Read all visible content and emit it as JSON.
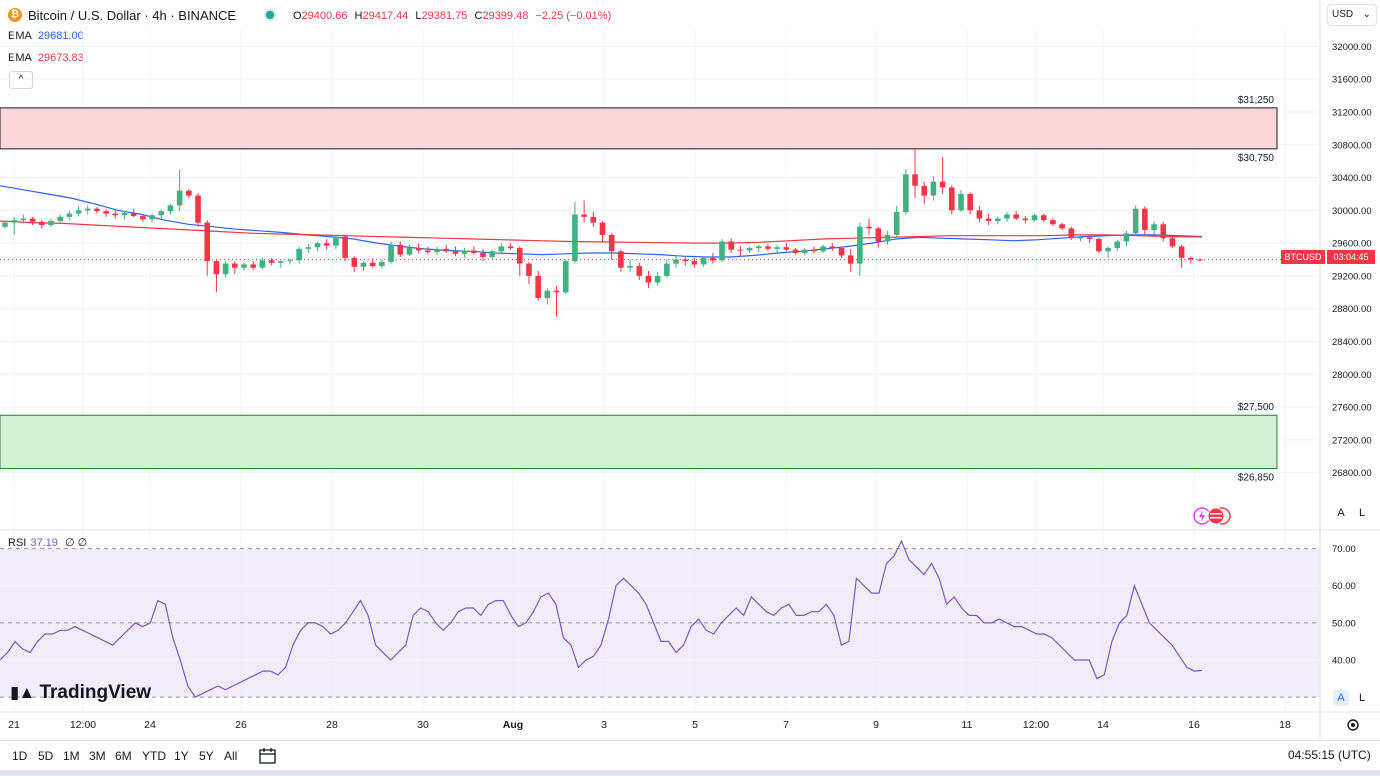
{
  "header": {
    "symbol_title": "Bitcoin / U.S. Dollar · 4h · BINANCE",
    "icon_letter": "₿",
    "ohlc": [
      {
        "k": "O",
        "v": "29400.66"
      },
      {
        "k": "H",
        "v": "29417.44"
      },
      {
        "k": "L",
        "v": "29381.75"
      },
      {
        "k": "C",
        "v": "29399.48"
      }
    ],
    "change": "−2.25 (−0.01%)",
    "ema1_label": "EMA",
    "ema1_value": "29681.00",
    "ema2_label": "EMA",
    "ema2_value": "29673.83",
    "collapse": "^"
  },
  "currency": "USD",
  "currency_arrow": "⌄",
  "price_tag": {
    "symbol": "BTCUSD",
    "countdown": "03:04:45",
    "price": "29399.48"
  },
  "rsi": {
    "label": "RSI",
    "value": "37.19",
    "extra": "∅ ∅"
  },
  "logo": "TradingView",
  "scale_buttons": {
    "auto": "A",
    "log": "L"
  },
  "timeframes": [
    "1D",
    "5D",
    "1M",
    "3M",
    "6M",
    "YTD",
    "1Y",
    "5Y",
    "All"
  ],
  "clock": "04:55:15 (UTC)",
  "colors": {
    "up": "#26a69a",
    "up_candle": "#3fb27f",
    "down": "#f23645",
    "ema_blue": "#2962ff",
    "ema_red": "#f23645",
    "rsi": "#7e57c2",
    "resistance_fill": "#fbd6d8",
    "support_fill": "#d1f0d4"
  },
  "chart_data": {
    "type": "candlestick",
    "title": "Bitcoin / U.S. Dollar · 4h · BINANCE",
    "price_axis": {
      "ticks": [
        32000,
        31600,
        31200,
        30800,
        30400,
        30000,
        29600,
        29200,
        28800,
        28400,
        28000,
        27600,
        27200,
        26800
      ],
      "tick_labels": [
        "32000.00",
        "31600.00",
        "31200.00",
        "30800.00",
        "30400.00",
        "30000.00",
        "29600.00",
        "29200.00",
        "28800.00",
        "28400.00",
        "28000.00",
        "27600.00",
        "27200.00",
        "26800.00"
      ],
      "range": [
        26100,
        32200
      ]
    },
    "time_axis": {
      "labels": [
        "21",
        "12:00",
        "24",
        "26",
        "28",
        "30",
        "Aug",
        "3",
        "5",
        "7",
        "9",
        "11",
        "12:00",
        "14",
        "16",
        "18"
      ],
      "bold": [
        "Aug"
      ]
    },
    "zones": [
      {
        "name": "resistance",
        "from": 30750,
        "to": 31250,
        "labels": [
          "$31,250",
          "$30,750"
        ]
      },
      {
        "name": "support",
        "from": 26850,
        "to": 27500,
        "labels": [
          "$27,500",
          "$26,850"
        ]
      }
    ],
    "candles_ohlc": [
      [
        29800,
        29870,
        29780,
        29850
      ],
      [
        29850,
        29920,
        29700,
        29880
      ],
      [
        29880,
        29950,
        29840,
        29900
      ],
      [
        29900,
        29920,
        29820,
        29860
      ],
      [
        29860,
        29880,
        29780,
        29820
      ],
      [
        29820,
        29900,
        29800,
        29870
      ],
      [
        29870,
        29950,
        29840,
        29920
      ],
      [
        29920,
        29990,
        29880,
        29960
      ],
      [
        29960,
        30050,
        29930,
        30000
      ],
      [
        30000,
        30060,
        29950,
        30020
      ],
      [
        30020,
        30040,
        29960,
        29990
      ],
      [
        29990,
        30010,
        29920,
        29960
      ],
      [
        29960,
        30000,
        29900,
        29940
      ],
      [
        29940,
        29990,
        29890,
        29970
      ],
      [
        29970,
        30020,
        29920,
        29930
      ],
      [
        29930,
        29950,
        29860,
        29890
      ],
      [
        29890,
        29960,
        29850,
        29940
      ],
      [
        29940,
        30010,
        29900,
        29990
      ],
      [
        29990,
        30080,
        29950,
        30060
      ],
      [
        30060,
        30500,
        29990,
        30240
      ],
      [
        30240,
        30260,
        30150,
        30180
      ],
      [
        30180,
        30210,
        29800,
        29850
      ],
      [
        29850,
        29880,
        29200,
        29380
      ],
      [
        29380,
        29400,
        29000,
        29220
      ],
      [
        29220,
        29380,
        29180,
        29350
      ],
      [
        29350,
        29380,
        29220,
        29300
      ],
      [
        29300,
        29360,
        29260,
        29340
      ],
      [
        29340,
        29380,
        29270,
        29300
      ],
      [
        29300,
        29420,
        29280,
        29390
      ],
      [
        29390,
        29420,
        29330,
        29360
      ],
      [
        29360,
        29390,
        29300,
        29380
      ],
      [
        29380,
        29410,
        29340,
        29390
      ],
      [
        29390,
        29560,
        29350,
        29530
      ],
      [
        29530,
        29590,
        29480,
        29550
      ],
      [
        29550,
        29620,
        29500,
        29600
      ],
      [
        29600,
        29650,
        29520,
        29570
      ],
      [
        29570,
        29700,
        29530,
        29680
      ],
      [
        29680,
        29700,
        29380,
        29420
      ],
      [
        29420,
        29440,
        29250,
        29310
      ],
      [
        29310,
        29380,
        29260,
        29360
      ],
      [
        29360,
        29420,
        29300,
        29320
      ],
      [
        29320,
        29400,
        29290,
        29370
      ],
      [
        29370,
        29620,
        29350,
        29580
      ],
      [
        29580,
        29620,
        29430,
        29460
      ],
      [
        29460,
        29580,
        29440,
        29540
      ],
      [
        29540,
        29600,
        29480,
        29510
      ],
      [
        29510,
        29560,
        29460,
        29490
      ],
      [
        29490,
        29560,
        29450,
        29530
      ],
      [
        29530,
        29580,
        29480,
        29500
      ],
      [
        29500,
        29560,
        29440,
        29470
      ],
      [
        29470,
        29540,
        29420,
        29510
      ],
      [
        29510,
        29560,
        29460,
        29480
      ],
      [
        29480,
        29530,
        29380,
        29430
      ],
      [
        29430,
        29520,
        29400,
        29500
      ],
      [
        29500,
        29600,
        29460,
        29560
      ],
      [
        29560,
        29600,
        29520,
        29540
      ],
      [
        29540,
        29560,
        29200,
        29350
      ],
      [
        29350,
        29370,
        29100,
        29200
      ],
      [
        29200,
        29260,
        28900,
        28930
      ],
      [
        28930,
        29050,
        28850,
        29020
      ],
      [
        29020,
        29080,
        28700,
        29000
      ],
      [
        29000,
        29400,
        28980,
        29380
      ],
      [
        29380,
        30100,
        29350,
        29950
      ],
      [
        29950,
        30120,
        29850,
        29920
      ],
      [
        29920,
        29980,
        29800,
        29850
      ],
      [
        29850,
        29870,
        29620,
        29700
      ],
      [
        29700,
        29720,
        29400,
        29500
      ],
      [
        29500,
        29520,
        29250,
        29300
      ],
      [
        29300,
        29400,
        29250,
        29320
      ],
      [
        29320,
        29360,
        29150,
        29200
      ],
      [
        29200,
        29260,
        29050,
        29120
      ],
      [
        29120,
        29250,
        29080,
        29200
      ],
      [
        29200,
        29400,
        29180,
        29350
      ],
      [
        29350,
        29450,
        29300,
        29400
      ],
      [
        29400,
        29440,
        29320,
        29380
      ],
      [
        29380,
        29420,
        29300,
        29340
      ],
      [
        29340,
        29440,
        29310,
        29420
      ],
      [
        29420,
        29480,
        29350,
        29390
      ],
      [
        29390,
        29650,
        29370,
        29620
      ],
      [
        29620,
        29660,
        29480,
        29520
      ],
      [
        29520,
        29560,
        29440,
        29510
      ],
      [
        29510,
        29560,
        29480,
        29540
      ],
      [
        29540,
        29580,
        29490,
        29560
      ],
      [
        29560,
        29590,
        29500,
        29530
      ],
      [
        29530,
        29580,
        29480,
        29550
      ],
      [
        29550,
        29600,
        29500,
        29520
      ],
      [
        29520,
        29540,
        29460,
        29480
      ],
      [
        29480,
        29540,
        29450,
        29520
      ],
      [
        29520,
        29560,
        29470,
        29500
      ],
      [
        29500,
        29580,
        29480,
        29560
      ],
      [
        29560,
        29600,
        29500,
        29540
      ],
      [
        29540,
        29560,
        29420,
        29450
      ],
      [
        29450,
        29530,
        29250,
        29350
      ],
      [
        29350,
        29850,
        29200,
        29800
      ],
      [
        29800,
        29900,
        29700,
        29780
      ],
      [
        29780,
        29800,
        29550,
        29620
      ],
      [
        29620,
        29750,
        29580,
        29700
      ],
      [
        29700,
        30050,
        29680,
        29980
      ],
      [
        29980,
        30500,
        29950,
        30440
      ],
      [
        30440,
        30750,
        30150,
        30300
      ],
      [
        30300,
        30350,
        30080,
        30180
      ],
      [
        30180,
        30420,
        30120,
        30350
      ],
      [
        30350,
        30650,
        30200,
        30280
      ],
      [
        30280,
        30310,
        29950,
        30000
      ],
      [
        30000,
        30250,
        29980,
        30200
      ],
      [
        30200,
        30220,
        29950,
        30000
      ],
      [
        30000,
        30050,
        29850,
        29900
      ],
      [
        29900,
        29960,
        29820,
        29870
      ],
      [
        29870,
        29920,
        29830,
        29900
      ],
      [
        29900,
        29980,
        29860,
        29950
      ],
      [
        29950,
        29990,
        29880,
        29900
      ],
      [
        29900,
        29930,
        29840,
        29880
      ],
      [
        29880,
        29960,
        29860,
        29940
      ],
      [
        29940,
        29960,
        29860,
        29880
      ],
      [
        29880,
        29900,
        29810,
        29830
      ],
      [
        29830,
        29850,
        29760,
        29780
      ],
      [
        29780,
        29800,
        29640,
        29660
      ],
      [
        29660,
        29690,
        29620,
        29670
      ],
      [
        29670,
        29700,
        29600,
        29650
      ],
      [
        29650,
        29670,
        29480,
        29500
      ],
      [
        29500,
        29560,
        29420,
        29540
      ],
      [
        29540,
        29640,
        29500,
        29620
      ],
      [
        29620,
        29750,
        29560,
        29720
      ],
      [
        29720,
        30060,
        29690,
        30020
      ],
      [
        30020,
        30050,
        29700,
        29760
      ],
      [
        29760,
        29870,
        29700,
        29830
      ],
      [
        29830,
        29860,
        29620,
        29660
      ],
      [
        29660,
        29680,
        29540,
        29560
      ],
      [
        29560,
        29580,
        29300,
        29420
      ],
      [
        29420,
        29440,
        29350,
        29400
      ],
      [
        29400,
        29417,
        29381,
        29399
      ]
    ],
    "ema_fast": {
      "name": "EMA",
      "last": 29681.0,
      "values": [
        30300,
        30250,
        30200,
        30150,
        30080,
        30000,
        29950,
        29880,
        29830,
        29800,
        29770,
        29750,
        29730,
        29700,
        29680,
        29650,
        29600,
        29560,
        29530,
        29510,
        29500,
        29480,
        29470,
        29460,
        29470,
        29480,
        29480,
        29470,
        29460,
        29440,
        29430,
        29430,
        29450,
        29480,
        29500,
        29530,
        29560,
        29600,
        29650,
        29670,
        29660,
        29650,
        29640,
        29630,
        29640,
        29660,
        29680,
        29690,
        29700,
        29700,
        29690,
        29681
      ]
    },
    "ema_slow": {
      "name": "EMA",
      "last": 29673.83,
      "values": [
        29870,
        29850,
        29840,
        29820,
        29800,
        29780,
        29760,
        29740,
        29720,
        29710,
        29700,
        29690,
        29680,
        29670,
        29660,
        29650,
        29640,
        29630,
        29620,
        29615,
        29610,
        29605,
        29600,
        29600,
        29610,
        29630,
        29650,
        29660,
        29670,
        29680,
        29690,
        29690,
        29690,
        29690,
        29700,
        29700,
        29690,
        29680,
        29674
      ]
    },
    "rsi": {
      "name": "RSI",
      "period_value": 37.19,
      "levels": [
        70,
        50,
        30
      ],
      "ticks": [
        70,
        60,
        50,
        40
      ],
      "tick_labels": [
        "70.00",
        "60.00",
        "50.00",
        "40.00"
      ],
      "range": [
        26,
        75
      ],
      "values": [
        40,
        42,
        45,
        43,
        42,
        45,
        47,
        47,
        48,
        48,
        49,
        48,
        47,
        46,
        45,
        44,
        46,
        48,
        50,
        49,
        50,
        56,
        55,
        46,
        40,
        33,
        30,
        31,
        32,
        33,
        32,
        33,
        34,
        35,
        36,
        37,
        37,
        36,
        38,
        44,
        48,
        50,
        50,
        49,
        47,
        48,
        50,
        53,
        56,
        52,
        44,
        42,
        40,
        42,
        44,
        52,
        54,
        53,
        50,
        48,
        50,
        53,
        54,
        54,
        52,
        55,
        56,
        56,
        52,
        49,
        50,
        53,
        57,
        58,
        55,
        46,
        44,
        38,
        40,
        41,
        44,
        51,
        60,
        62,
        60,
        58,
        55,
        50,
        45,
        45,
        42,
        44,
        49,
        51,
        48,
        47,
        50,
        52,
        54,
        52,
        57,
        55,
        53,
        52,
        54,
        55,
        52,
        52,
        53,
        53,
        55,
        52,
        44,
        45,
        62,
        60,
        58,
        58,
        66,
        68,
        72,
        67,
        65,
        63,
        66,
        62,
        55,
        57,
        54,
        52,
        52,
        50,
        50,
        51,
        50,
        49,
        49,
        48,
        47,
        47,
        46,
        44,
        42,
        40,
        40,
        40,
        35,
        36,
        45,
        50,
        52,
        60,
        55,
        50,
        48,
        46,
        44,
        41,
        38,
        37,
        37.19
      ]
    }
  }
}
